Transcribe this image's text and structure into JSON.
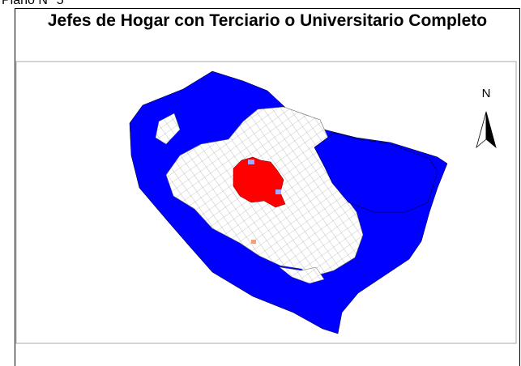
{
  "header": {
    "plan_label": "Plano N° 5",
    "title": "Jefes de Hogar con Terciario o Universitario Completo"
  },
  "map": {
    "north_label": "N"
  }
}
